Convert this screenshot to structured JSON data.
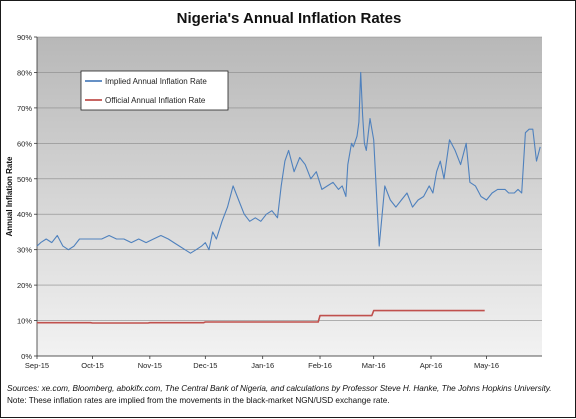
{
  "chart_data": {
    "type": "line",
    "title": "Nigeria's Annual Inflation Rates",
    "xlabel": "",
    "ylabel": "Annual Inflation Rate",
    "ylim": [
      0,
      90
    ],
    "yticks": [
      "0%",
      "10%",
      "20%",
      "30%",
      "40%",
      "50%",
      "60%",
      "70%",
      "80%",
      "90%"
    ],
    "ytick_values": [
      0,
      10,
      20,
      30,
      40,
      50,
      60,
      70,
      80,
      90
    ],
    "xlim": [
      "2015-09-01",
      "2016-05-31"
    ],
    "xticks": [
      "Sep-15",
      "Oct-15",
      "Nov-15",
      "Dec-15",
      "Jan-16",
      "Feb-16",
      "Mar-16",
      "Apr-16",
      "May-16"
    ],
    "xtick_dates": [
      "2015-09-01",
      "2015-10-01",
      "2015-11-01",
      "2015-12-01",
      "2016-01-01",
      "2016-02-01",
      "2016-03-01",
      "2016-04-01",
      "2016-05-01"
    ],
    "grid": true,
    "legend_position": "top-left",
    "colors": {
      "plot_background": "#c9c9c9",
      "gridline": "#8a8a8a",
      "implied": "#4f81bd",
      "official": "#c0504d"
    },
    "series": [
      {
        "name": "Implied Annual Inflation Rate",
        "color": "#4f81bd",
        "x": [
          "2015-09-01",
          "2015-09-03",
          "2015-09-06",
          "2015-09-09",
          "2015-09-12",
          "2015-09-15",
          "2015-09-18",
          "2015-09-21",
          "2015-09-24",
          "2015-09-27",
          "2015-09-30",
          "2015-10-03",
          "2015-10-06",
          "2015-10-10",
          "2015-10-14",
          "2015-10-18",
          "2015-10-22",
          "2015-10-26",
          "2015-10-30",
          "2015-11-03",
          "2015-11-07",
          "2015-11-11",
          "2015-11-14",
          "2015-11-17",
          "2015-11-20",
          "2015-11-23",
          "2015-11-26",
          "2015-11-29",
          "2015-12-01",
          "2015-12-03",
          "2015-12-05",
          "2015-12-07",
          "2015-12-10",
          "2015-12-13",
          "2015-12-16",
          "2015-12-19",
          "2015-12-22",
          "2015-12-25",
          "2015-12-28",
          "2015-12-31",
          "2016-01-03",
          "2016-01-06",
          "2016-01-09",
          "2016-01-11",
          "2016-01-13",
          "2016-01-15",
          "2016-01-18",
          "2016-01-21",
          "2016-01-24",
          "2016-01-27",
          "2016-01-30",
          "2016-02-02",
          "2016-02-05",
          "2016-02-08",
          "2016-02-11",
          "2016-02-13",
          "2016-02-15",
          "2016-02-16",
          "2016-02-18",
          "2016-02-19",
          "2016-02-21",
          "2016-02-22",
          "2016-02-23",
          "2016-02-24",
          "2016-02-25",
          "2016-02-26",
          "2016-02-28",
          "2016-03-01",
          "2016-03-04",
          "2016-03-07",
          "2016-03-10",
          "2016-03-13",
          "2016-03-16",
          "2016-03-19",
          "2016-03-22",
          "2016-03-25",
          "2016-03-28",
          "2016-03-31",
          "2016-04-02",
          "2016-04-04",
          "2016-04-06",
          "2016-04-08",
          "2016-04-11",
          "2016-04-14",
          "2016-04-17",
          "2016-04-20",
          "2016-04-22",
          "2016-04-25",
          "2016-04-28",
          "2016-05-01",
          "2016-05-04",
          "2016-05-07",
          "2016-05-09",
          "2016-05-11",
          "2016-05-13",
          "2016-05-16",
          "2016-05-18",
          "2016-05-20",
          "2016-05-22",
          "2016-05-24",
          "2016-05-26",
          "2016-05-28",
          "2016-05-30"
        ],
        "values": [
          31,
          32,
          33,
          32,
          34,
          31,
          30,
          31,
          33,
          33,
          33,
          33,
          33,
          34,
          33,
          33,
          32,
          33,
          32,
          33,
          34,
          33,
          32,
          31,
          30,
          29,
          30,
          31,
          32,
          30,
          35,
          33,
          38,
          42,
          48,
          44,
          40,
          38,
          39,
          38,
          40,
          41,
          39,
          48,
          55,
          58,
          52,
          56,
          54,
          50,
          52,
          47,
          48,
          49,
          47,
          48,
          45,
          54,
          60,
          59,
          62,
          66,
          80,
          68,
          60,
          58,
          67,
          61,
          31,
          48,
          44,
          42,
          44,
          46,
          42,
          44,
          45,
          48,
          46,
          52,
          55,
          50,
          61,
          58,
          54,
          60,
          49,
          48,
          45,
          44,
          46,
          47,
          47,
          47,
          46,
          46,
          47,
          46,
          63,
          64,
          64,
          55,
          59
        ]
      },
      {
        "name": "Official Annual Inflation Rate",
        "color": "#c0504d",
        "x": [
          "2015-09-01",
          "2015-09-30",
          "2015-10-01",
          "2015-10-31",
          "2015-11-01",
          "2015-11-30",
          "2015-12-01",
          "2015-12-31",
          "2016-01-01",
          "2016-01-31",
          "2016-02-01",
          "2016-02-29",
          "2016-03-01",
          "2016-03-31",
          "2016-04-01",
          "2016-04-30"
        ],
        "values": [
          9.4,
          9.4,
          9.3,
          9.3,
          9.4,
          9.4,
          9.6,
          9.6,
          9.6,
          9.6,
          11.4,
          11.4,
          12.8,
          12.8,
          12.8,
          12.8
        ]
      }
    ]
  },
  "notes": {
    "sources": "Sources: xe.com, Bloomberg, abokifx.com, The Central Bank of Nigeria, and calculations by Professor Steve H. Hanke, The Johns Hopkins University.",
    "note": "Note: These inflation rates are implied from the movements in the black-market NGN/USD exchange rate."
  }
}
